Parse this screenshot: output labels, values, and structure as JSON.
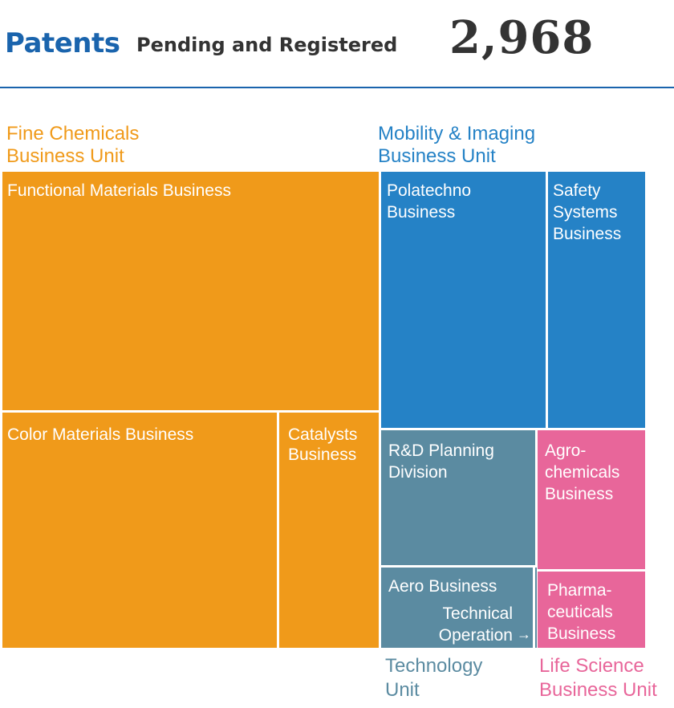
{
  "header": {
    "title": "Patents",
    "subtitle": "Pending and Registered",
    "total": "2,968"
  },
  "chart_data": {
    "type": "treemap",
    "title": "Patents",
    "subtitle": "Pending and Registered",
    "total": "2,968",
    "colors": {
      "fine_chemicals": "#f09a1a",
      "mobility_imaging": "#2582c6",
      "technology": "#5b8ba1",
      "life_science": "#e8669a"
    },
    "groups": [
      {
        "id": "fine_chemicals",
        "label": [
          "Fine Chemicals",
          "Business Unit"
        ],
        "color": "#f09a1a",
        "items": [
          {
            "id": "functional",
            "label": [
              "Functional Materials Business"
            ]
          },
          {
            "id": "color",
            "label": [
              "Color Materials Business"
            ]
          },
          {
            "id": "catalysts",
            "label": [
              "Catalysts",
              "Business"
            ]
          }
        ]
      },
      {
        "id": "mobility_imaging",
        "label": [
          "Mobility & Imaging",
          "Business Unit"
        ],
        "color": "#2582c6",
        "items": [
          {
            "id": "polatechno",
            "label": [
              "Polatechno",
              "Business"
            ]
          },
          {
            "id": "safety",
            "label": [
              "Safety",
              "Systems",
              "Business"
            ]
          }
        ]
      },
      {
        "id": "technology",
        "label": [
          "Technology",
          "Unit"
        ],
        "color": "#5b8ba1",
        "items": [
          {
            "id": "rnd",
            "label": [
              "R&D Planning",
              "Division"
            ]
          },
          {
            "id": "aero",
            "label": [
              "Aero Business"
            ]
          },
          {
            "id": "techop",
            "label": [
              "Technical",
              "Operation"
            ],
            "arrow": "→"
          }
        ]
      },
      {
        "id": "life_science",
        "label": [
          "Life Science",
          "Business Unit"
        ],
        "color": "#e8669a",
        "items": [
          {
            "id": "agro",
            "label": [
              "Agro-",
              "chemicals",
              "Business"
            ]
          },
          {
            "id": "pharma",
            "label": [
              "Pharma-",
              "ceuticals",
              "Business"
            ]
          }
        ]
      }
    ]
  }
}
